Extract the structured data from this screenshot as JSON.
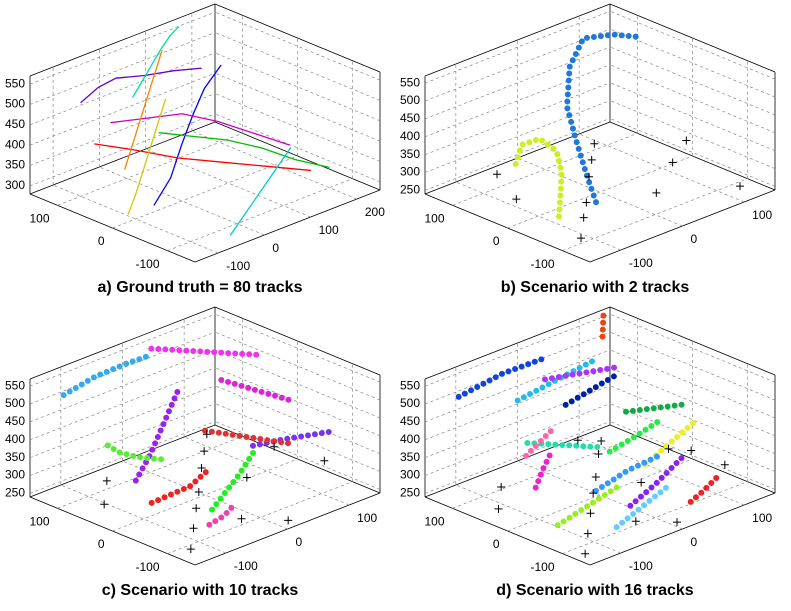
{
  "chart_data": [
    {
      "type": "line3d",
      "title": "a) Ground truth = 80 tracks",
      "xlim": [
        -150,
        250
      ],
      "ylim": [
        -150,
        150
      ],
      "zlim": [
        280,
        570
      ],
      "xticks": [
        -100,
        0,
        100,
        200
      ],
      "yticks": [
        -100,
        0,
        100
      ],
      "zticks": [
        300,
        350,
        400,
        450,
        500,
        550
      ],
      "grid": true,
      "series": [
        {
          "color": "#6600cc",
          "x": [
            -100,
            -50,
            0,
            50,
            100,
            150
          ],
          "y": [
            100,
            110,
            120,
            110,
            100,
            90
          ],
          "z": [
            510,
            520,
            515,
            505,
            500,
            490
          ]
        },
        {
          "color": "#0000ff",
          "x": [
            -120,
            -60,
            0,
            60,
            120,
            180
          ],
          "y": [
            -50,
            -30,
            0,
            30,
            60,
            80
          ],
          "z": [
            350,
            380,
            420,
            450,
            470,
            490
          ]
        },
        {
          "color": "#00bb00",
          "x": [
            200,
            150,
            100,
            50,
            0,
            -50
          ],
          "y": [
            -100,
            -80,
            -60,
            -40,
            -20,
            0
          ],
          "z": [
            330,
            360,
            400,
            430,
            450,
            470
          ]
        },
        {
          "color": "#ff0000",
          "x": [
            -130,
            -80,
            -20,
            40,
            100,
            160
          ],
          "y": [
            50,
            20,
            -10,
            -40,
            -70,
            -100
          ],
          "z": [
            450,
            430,
            400,
            380,
            360,
            340
          ]
        },
        {
          "color": "#00cccc",
          "x": [
            -50,
            0,
            50,
            100,
            150,
            200
          ],
          "y": [
            -130,
            -110,
            -90,
            -70,
            -50,
            -30
          ],
          "z": [
            290,
            300,
            310,
            320,
            330,
            340
          ]
        },
        {
          "color": "#cc00cc",
          "x": [
            0,
            30,
            60,
            90,
            120,
            150
          ],
          "y": [
            130,
            90,
            50,
            10,
            -30,
            -70
          ],
          "z": [
            400,
            420,
            440,
            430,
            410,
            390
          ]
        },
        {
          "color": "#cccc00",
          "x": [
            -140,
            -100,
            -60,
            -20,
            20,
            60
          ],
          "y": [
            -20,
            0,
            20,
            40,
            60,
            80
          ],
          "z": [
            320,
            340,
            370,
            400,
            430,
            460
          ]
        },
        {
          "color": "#ff8000",
          "x": [
            100,
            60,
            20,
            -20,
            -60,
            -100
          ],
          "y": [
            120,
            100,
            80,
            60,
            40,
            20
          ],
          "z": [
            540,
            510,
            480,
            450,
            420,
            390
          ]
        },
        {
          "color": "#00e0a0",
          "x": [
            60,
            80,
            100,
            120,
            140,
            160
          ],
          "y": [
            140,
            140,
            140,
            140,
            140,
            140
          ],
          "z": [
            430,
            460,
            490,
            520,
            545,
            560
          ]
        }
      ]
    },
    {
      "type": "scatter3d",
      "title": "b) Scenario with 2 tracks",
      "xlim": [
        -150,
        150
      ],
      "ylim": [
        -150,
        150
      ],
      "zlim": [
        240,
        570
      ],
      "xticks": [
        -100,
        0,
        100
      ],
      "yticks": [
        -100,
        0,
        100
      ],
      "zticks": [
        250,
        300,
        350,
        400,
        450,
        500,
        550
      ],
      "grid": true,
      "series": [
        {
          "color": "#2277dd",
          "marker": "o",
          "x": [
            -60,
            -40,
            -20,
            0,
            40,
            80,
            120,
            150
          ],
          "y": [
            -60,
            -20,
            20,
            60,
            100,
            120,
            110,
            100
          ],
          "z": [
            290,
            330,
            380,
            440,
            500,
            540,
            530,
            510
          ]
        },
        {
          "color": "#ccee22",
          "marker": "o",
          "x": [
            -120,
            -100,
            -80,
            -70,
            -80,
            -100,
            -120
          ],
          "y": [
            -60,
            -40,
            -20,
            0,
            20,
            30,
            20
          ],
          "z": [
            290,
            320,
            360,
            400,
            430,
            420,
            380
          ]
        },
        {
          "color": "#000000",
          "marker": "+",
          "x": [
            -120,
            -80,
            -40,
            0,
            40,
            80,
            120,
            -100,
            20,
            100,
            -60,
            140
          ],
          "y": [
            -100,
            -60,
            -20,
            20,
            60,
            100,
            -120,
            40,
            -80,
            -20,
            120,
            0
          ],
          "z": [
            255,
            260,
            250,
            270,
            265,
            258,
            252,
            262,
            275,
            268,
            254,
            290
          ]
        }
      ]
    },
    {
      "type": "scatter3d",
      "title": "c) Scenario with 10 tracks",
      "xlim": [
        -150,
        150
      ],
      "ylim": [
        -150,
        150
      ],
      "zlim": [
        240,
        570
      ],
      "xticks": [
        -100,
        0,
        100
      ],
      "yticks": [
        -100,
        0,
        100
      ],
      "zticks": [
        250,
        300,
        350,
        400,
        450,
        500,
        550
      ],
      "grid": true,
      "series": [
        {
          "color": "#33aaee",
          "marker": "o",
          "x": [
            -140,
            -80,
            -20,
            30
          ],
          "y": [
            100,
            110,
            120,
            130
          ],
          "z": [
            550,
            555,
            545,
            530
          ]
        },
        {
          "color": "#ee33ee",
          "marker": "o",
          "x": [
            20,
            60,
            100,
            140
          ],
          "y": [
            120,
            100,
            80,
            60
          ],
          "z": [
            560,
            540,
            520,
            500
          ]
        },
        {
          "color": "#9922ee",
          "marker": "o",
          "x": [
            -130,
            -80,
            -30,
            20
          ],
          "y": [
            -20,
            10,
            40,
            70
          ],
          "z": [
            380,
            400,
            440,
            480
          ]
        },
        {
          "color": "#ee2222",
          "marker": "o",
          "x": [
            -140,
            -100,
            -60,
            -20
          ],
          "y": [
            -60,
            -50,
            -40,
            -30
          ],
          "z": [
            350,
            340,
            330,
            345
          ]
        },
        {
          "color": "#22ee22",
          "marker": "o",
          "x": [
            -60,
            -20,
            20,
            60
          ],
          "y": [
            -80,
            -60,
            -40,
            -20
          ],
          "z": [
            290,
            300,
            310,
            330
          ]
        },
        {
          "color": "#ee44aa",
          "marker": "o",
          "x": [
            -100,
            -70,
            -40,
            -10
          ],
          "y": [
            -120,
            -100,
            -80,
            -60
          ],
          "z": [
            300,
            280,
            260,
            250
          ]
        },
        {
          "color": "#55ee33",
          "marker": "o",
          "x": [
            -140,
            -130,
            -110,
            -80
          ],
          "y": [
            20,
            10,
            0,
            -10
          ],
          "z": [
            460,
            440,
            420,
            400
          ]
        },
        {
          "color": "#7733ee",
          "marker": "o",
          "x": [
            60,
            90,
            110,
            130
          ],
          "y": [
            -20,
            -40,
            -60,
            -80
          ],
          "z": [
            350,
            360,
            370,
            380
          ]
        },
        {
          "color": "#dd22dd",
          "marker": "o",
          "x": [
            80,
            100,
            120,
            140
          ],
          "y": [
            60,
            40,
            20,
            0
          ],
          "z": [
            470,
            450,
            430,
            410
          ]
        },
        {
          "color": "#dd3333",
          "marker": "o",
          "x": [
            0,
            30,
            60,
            90
          ],
          "y": [
            0,
            -20,
            -40,
            -60
          ],
          "z": [
            420,
            400,
            380,
            360
          ]
        },
        {
          "color": "#000000",
          "marker": "+",
          "x": [
            -130,
            -90,
            -50,
            -10,
            30,
            70,
            110,
            140,
            -110,
            -30,
            50,
            130,
            -70,
            10
          ],
          "y": [
            -120,
            -80,
            -40,
            0,
            40,
            80,
            120,
            -60,
            60,
            -100,
            -20,
            20,
            100,
            -140
          ],
          "z": [
            252,
            258,
            262,
            255,
            270,
            265,
            260,
            280,
            250,
            257,
            268,
            275,
            263,
            251
          ]
        }
      ]
    },
    {
      "type": "scatter3d",
      "title": "d) Scenario with 16 tracks",
      "xlim": [
        -150,
        150
      ],
      "ylim": [
        -150,
        150
      ],
      "zlim": [
        240,
        570
      ],
      "xticks": [
        -100,
        0,
        100
      ],
      "yticks": [
        -100,
        0,
        100
      ],
      "zticks": [
        250,
        300,
        350,
        400,
        450,
        500,
        550
      ],
      "grid": true,
      "series": [
        {
          "color": "#1144dd",
          "marker": "o",
          "x": [
            -140,
            -60,
            20
          ],
          "y": [
            100,
            110,
            120
          ],
          "z": [
            545,
            550,
            535
          ]
        },
        {
          "color": "#ee4411",
          "marker": "o",
          "x": [
            120,
            130,
            140
          ],
          "y": [
            130,
            140,
            150
          ],
          "z": [
            520,
            550,
            570
          ]
        },
        {
          "color": "#22bbee",
          "marker": "o",
          "x": [
            -80,
            0,
            80
          ],
          "y": [
            60,
            80,
            100
          ],
          "z": [
            520,
            510,
            500
          ]
        },
        {
          "color": "#22ee44",
          "marker": "o",
          "x": [
            -20,
            40,
            100
          ],
          "y": [
            -40,
            -20,
            0
          ],
          "z": [
            400,
            390,
            385
          ]
        },
        {
          "color": "#ee22cc",
          "marker": "o",
          "x": [
            -140,
            -110,
            -80
          ],
          "y": [
            -40,
            -20,
            0
          ],
          "z": [
            380,
            400,
            410
          ]
        },
        {
          "color": "#eeee22",
          "marker": "o",
          "x": [
            20,
            80,
            140
          ],
          "y": [
            -60,
            -40,
            -20
          ],
          "z": [
            350,
            360,
            370
          ]
        },
        {
          "color": "#8822ee",
          "marker": "o",
          "x": [
            -40,
            20,
            80
          ],
          "y": [
            -100,
            -80,
            -60
          ],
          "z": [
            300,
            310,
            330
          ]
        },
        {
          "color": "#22ddaa",
          "marker": "o",
          "x": [
            -100,
            -60,
            -20
          ],
          "y": [
            20,
            0,
            -20
          ],
          "z": [
            440,
            420,
            400
          ]
        },
        {
          "color": "#ee2222",
          "marker": "o",
          "x": [
            40,
            70,
            100
          ],
          "y": [
            -120,
            -110,
            -100
          ],
          "z": [
            270,
            275,
            285
          ]
        },
        {
          "color": "#0022aa",
          "marker": "o",
          "x": [
            -20,
            40,
            100
          ],
          "y": [
            40,
            60,
            80
          ],
          "z": [
            480,
            470,
            460
          ]
        },
        {
          "color": "#66ccff",
          "marker": "o",
          "x": [
            -80,
            -20,
            40
          ],
          "y": [
            -120,
            -100,
            -80
          ],
          "z": [
            280,
            285,
            290
          ]
        },
        {
          "color": "#99ee22",
          "marker": "o",
          "x": [
            -140,
            -80,
            -20
          ],
          "y": [
            -80,
            -70,
            -60
          ],
          "z": [
            300,
            310,
            320
          ]
        },
        {
          "color": "#ff66aa",
          "marker": "o",
          "x": [
            -120,
            -90,
            -60
          ],
          "y": [
            0,
            10,
            20
          ],
          "z": [
            430,
            440,
            450
          ]
        },
        {
          "color": "#11aa44",
          "marker": "o",
          "x": [
            60,
            100,
            140
          ],
          "y": [
            20,
            10,
            0
          ],
          "z": [
            420,
            410,
            400
          ]
        },
        {
          "color": "#3399ff",
          "marker": "o",
          "x": [
            -60,
            0,
            60
          ],
          "y": [
            -60,
            -50,
            -40
          ],
          "z": [
            330,
            340,
            335
          ]
        },
        {
          "color": "#aa33ff",
          "marker": "o",
          "x": [
            0,
            50,
            100
          ],
          "y": [
            100,
            90,
            80
          ],
          "z": [
            500,
            490,
            480
          ]
        },
        {
          "color": "#000000",
          "marker": "+",
          "x": [
            -140,
            -100,
            -60,
            -20,
            20,
            60,
            100,
            140,
            -120,
            -40,
            40,
            120,
            -80,
            0,
            80,
            130
          ],
          "y": [
            -130,
            -90,
            -50,
            -10,
            30,
            70,
            110,
            -70,
            50,
            -110,
            -30,
            10,
            90,
            -140,
            130,
            -20
          ],
          "z": [
            252,
            256,
            261,
            265,
            258,
            270,
            254,
            275,
            250,
            263,
            267,
            282,
            259,
            253,
            257,
            290
          ]
        }
      ]
    }
  ]
}
